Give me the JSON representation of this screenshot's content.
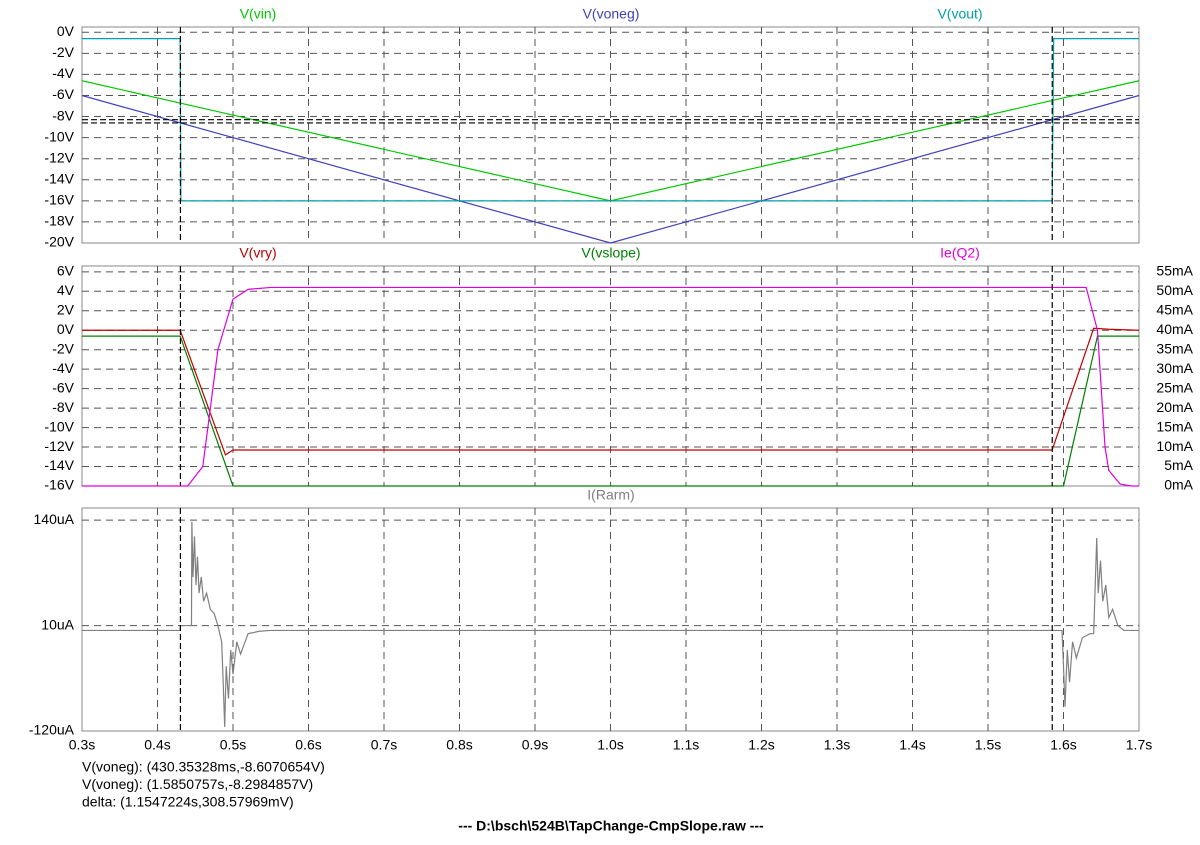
{
  "chart_data": [
    {
      "type": "line",
      "ylim": [
        -20,
        0.5
      ],
      "yticks": [
        {
          "value": 0,
          "label": "0V"
        },
        {
          "value": -2,
          "label": "-2V"
        },
        {
          "value": -4,
          "label": "-4V"
        },
        {
          "value": -6,
          "label": "-6V"
        },
        {
          "value": -8,
          "label": "-8V"
        },
        {
          "value": -10,
          "label": "-10V"
        },
        {
          "value": -12,
          "label": "-12V"
        },
        {
          "value": -14,
          "label": "-14V"
        },
        {
          "value": -16,
          "label": "-16V"
        },
        {
          "value": -18,
          "label": "-18V"
        },
        {
          "value": -20,
          "label": "-20V"
        }
      ],
      "grid": true,
      "series": [
        {
          "name": "V(vin)",
          "color": "#00c800",
          "x": [
            0.3,
            1.0,
            1.7
          ],
          "values": [
            -4.6,
            -16,
            -4.6
          ]
        },
        {
          "name": "V(voneg)",
          "color": "#4040c0",
          "x": [
            0.3,
            1.0,
            1.7
          ],
          "values": [
            -6,
            -20,
            -6
          ]
        },
        {
          "name": "V(vout)",
          "color": "#00a0a8",
          "x": [
            0.3,
            0.43,
            0.431,
            1.585,
            1.587,
            1.7
          ],
          "values": [
            -0.6,
            -0.6,
            -16,
            -16,
            -0.6,
            -0.6
          ]
        }
      ],
      "cursors": [
        {
          "x": 0.43035328,
          "y": -8.6070654,
          "label": "V(voneg): (430.35328ms,-8.6070654V)"
        },
        {
          "x": 1.5850757,
          "y": -8.2984857,
          "label": "V(voneg): (1.5850757s,-8.2984857V)"
        }
      ],
      "cursor_delta": "delta: (1.1547224s,308.57969mV)"
    },
    {
      "type": "line",
      "ylim": [
        -16,
        6.6
      ],
      "yticks": [
        {
          "value": 6,
          "label": "6V"
        },
        {
          "value": 4,
          "label": "4V"
        },
        {
          "value": 2,
          "label": "2V"
        },
        {
          "value": 0,
          "label": "0V"
        },
        {
          "value": -2,
          "label": "-2V"
        },
        {
          "value": -4,
          "label": "-4V"
        },
        {
          "value": -6,
          "label": "-6V"
        },
        {
          "value": -8,
          "label": "-8V"
        },
        {
          "value": -10,
          "label": "-10V"
        },
        {
          "value": -12,
          "label": "-12V"
        },
        {
          "value": -14,
          "label": "-14V"
        },
        {
          "value": -16,
          "label": "-16V"
        }
      ],
      "y2lim": [
        0,
        56.5
      ],
      "y2ticks": [
        {
          "value": 55,
          "label": "55mA"
        },
        {
          "value": 50,
          "label": "50mA"
        },
        {
          "value": 45,
          "label": "45mA"
        },
        {
          "value": 40,
          "label": "40mA"
        },
        {
          "value": 35,
          "label": "35mA"
        },
        {
          "value": 30,
          "label": "30mA"
        },
        {
          "value": 25,
          "label": "25mA"
        },
        {
          "value": 20,
          "label": "20mA"
        },
        {
          "value": 15,
          "label": "15mA"
        },
        {
          "value": 10,
          "label": "10mA"
        },
        {
          "value": 5,
          "label": "5mA"
        },
        {
          "value": 0,
          "label": "0mA"
        }
      ],
      "grid": true,
      "series": [
        {
          "name": "V(vry)",
          "color": "#c00000",
          "x": [
            0.3,
            0.43,
            0.49,
            0.5,
            1.585,
            1.64,
            1.66,
            1.7
          ],
          "values": [
            0,
            0,
            -12.8,
            -12.3,
            -12.3,
            0.2,
            0.1,
            0
          ]
        },
        {
          "name": "V(vslope)",
          "color": "#008000",
          "x": [
            0.3,
            0.43,
            0.5,
            1.6,
            1.645,
            1.7
          ],
          "values": [
            -0.6,
            -0.6,
            -16,
            -16,
            -0.6,
            -0.6
          ]
        },
        {
          "name": "Ie(Q2)",
          "color": "#e000e0",
          "axis": "y2",
          "x": [
            0.3,
            0.44,
            0.46,
            0.48,
            0.5,
            0.52,
            0.55,
            1.63,
            1.645,
            1.655,
            1.66,
            1.675,
            1.69,
            1.7
          ],
          "values": [
            0,
            0,
            5,
            35,
            48,
            50.5,
            51,
            51,
            40,
            10,
            4,
            0.5,
            0,
            0
          ]
        }
      ]
    },
    {
      "type": "line",
      "ylim": [
        -120,
        155
      ],
      "yticks": [
        {
          "value": 140,
          "label": "140uA"
        },
        {
          "value": 10,
          "label": "10uA"
        },
        {
          "value": -120,
          "label": "-120uA"
        }
      ],
      "grid": true,
      "xlim": [
        0.3,
        1.7
      ],
      "xticks": [
        {
          "value": 0.3,
          "label": "0.3s"
        },
        {
          "value": 0.4,
          "label": "0.4s"
        },
        {
          "value": 0.5,
          "label": "0.5s"
        },
        {
          "value": 0.6,
          "label": "0.6s"
        },
        {
          "value": 0.7,
          "label": "0.7s"
        },
        {
          "value": 0.8,
          "label": "0.8s"
        },
        {
          "value": 0.9,
          "label": "0.9s"
        },
        {
          "value": 1.0,
          "label": "1.0s"
        },
        {
          "value": 1.1,
          "label": "1.1s"
        },
        {
          "value": 1.2,
          "label": "1.2s"
        },
        {
          "value": 1.3,
          "label": "1.3s"
        },
        {
          "value": 1.4,
          "label": "1.4s"
        },
        {
          "value": 1.5,
          "label": "1.5s"
        },
        {
          "value": 1.6,
          "label": "1.6s"
        },
        {
          "value": 1.7,
          "label": "1.7s"
        }
      ],
      "series": [
        {
          "name": "I(Rarm)",
          "color": "#808080",
          "x": [
            0.3,
            0.43,
            0.4304,
            0.445,
            0.4455,
            0.447,
            0.449,
            0.451,
            0.453,
            0.455,
            0.458,
            0.461,
            0.465,
            0.47,
            0.475,
            0.48,
            0.485,
            0.487,
            0.489,
            0.491,
            0.494,
            0.497,
            0.5,
            0.505,
            0.51,
            0.52,
            0.535,
            0.55,
            1.598,
            1.6,
            1.602,
            1.605,
            1.608,
            1.612,
            1.617,
            1.625,
            1.635,
            1.64,
            1.642,
            1.644,
            1.646,
            1.649,
            1.652,
            1.656,
            1.66,
            1.665,
            1.672,
            1.68,
            1.7
          ],
          "values": [
            4,
            4,
            10,
            10,
            138,
            70,
            120,
            60,
            95,
            50,
            70,
            40,
            50,
            30,
            25,
            10,
            -10,
            -60,
            -115,
            -40,
            -80,
            -20,
            -50,
            -10,
            -25,
            0,
            3,
            4,
            4,
            -40,
            -90,
            -20,
            -60,
            -10,
            -30,
            -5,
            0,
            0,
            60,
            118,
            50,
            90,
            40,
            60,
            20,
            30,
            10,
            4,
            4
          ]
        }
      ]
    }
  ],
  "file_title": "---  D:\\bsch\\524B\\TapChange-CmpSlope.raw  ---"
}
